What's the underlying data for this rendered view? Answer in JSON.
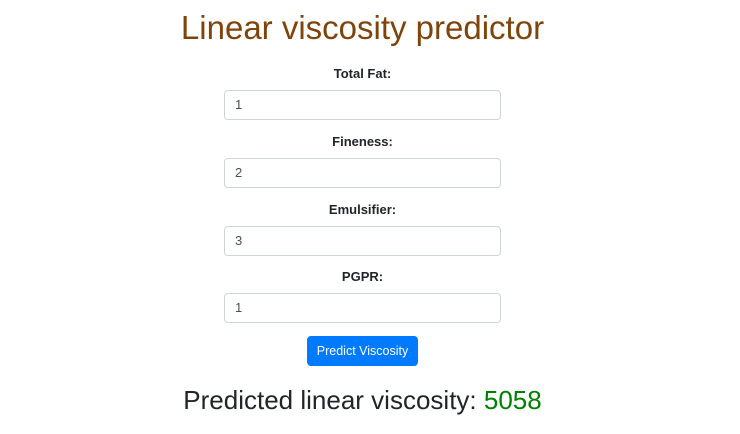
{
  "page": {
    "title": "Linear viscosity predictor"
  },
  "form": {
    "fields": [
      {
        "label": "Total Fat:",
        "value": "1"
      },
      {
        "label": "Fineness:",
        "value": "2"
      },
      {
        "label": "Emulsifier:",
        "value": "3"
      },
      {
        "label": "PGPR:",
        "value": "1"
      }
    ],
    "submit_label": "Predict Viscosity"
  },
  "result": {
    "label": "Predicted linear viscosity: ",
    "value": "5058"
  },
  "colors": {
    "title": "#7f4409",
    "button": "#007bff",
    "result_value": "#008000"
  }
}
